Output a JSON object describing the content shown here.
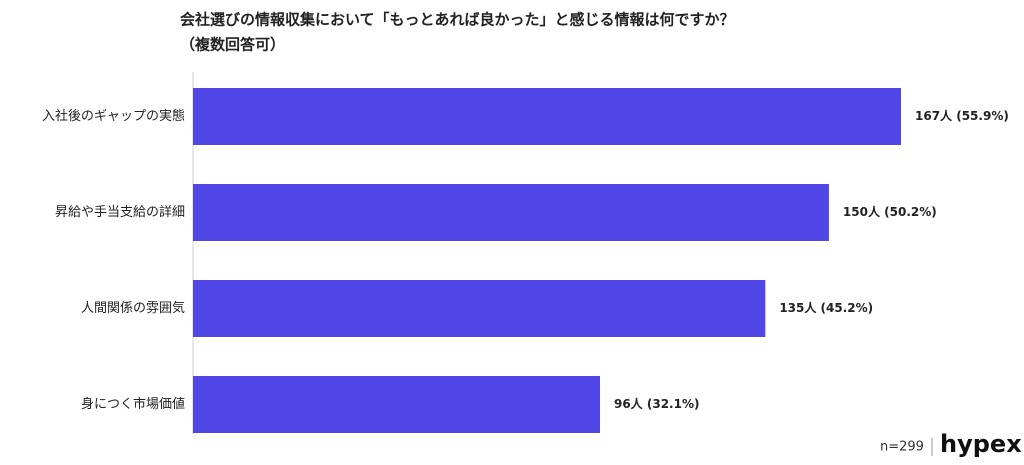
{
  "chart_data": {
    "type": "bar",
    "orientation": "horizontal",
    "title": "会社選びの情報収集において「もっとあれば良かった」と感じる情報は何ですか？",
    "subtitle": "（複数回答可）",
    "categories": [
      "入社後のギャップの実態",
      "昇給や手当支給の詳細",
      "人間関係の雰囲気",
      "身につく市場価値"
    ],
    "values": [
      167,
      150,
      135,
      96
    ],
    "value_labels": [
      "167人 (55.9%)",
      "150人 (50.2%)",
      "135人 (45.2%)",
      "96人 (32.1%)"
    ],
    "color": "#5046e5",
    "note": "n=299",
    "logo": "hypex"
  }
}
